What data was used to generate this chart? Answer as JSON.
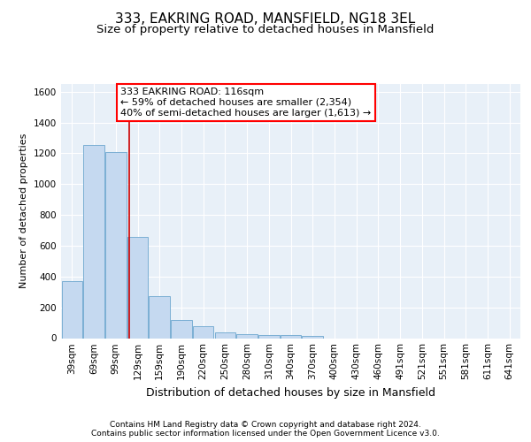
{
  "title": "333, EAKRING ROAD, MANSFIELD, NG18 3EL",
  "subtitle": "Size of property relative to detached houses in Mansfield",
  "xlabel": "Distribution of detached houses by size in Mansfield",
  "ylabel": "Number of detached properties",
  "footer_line1": "Contains HM Land Registry data © Crown copyright and database right 2024.",
  "footer_line2": "Contains public sector information licensed under the Open Government Licence v3.0.",
  "annotation_line1": "333 EAKRING ROAD: 116sqm",
  "annotation_line2": "← 59% of detached houses are smaller (2,354)",
  "annotation_line3": "40% of semi-detached houses are larger (1,613) →",
  "bar_color": "#c5d9f0",
  "bar_edge_color": "#7bafd4",
  "red_line_color": "#cc0000",
  "background_color": "#e8f0f8",
  "categories": [
    "39sqm",
    "69sqm",
    "99sqm",
    "129sqm",
    "159sqm",
    "190sqm",
    "220sqm",
    "250sqm",
    "280sqm",
    "310sqm",
    "340sqm",
    "370sqm",
    "400sqm",
    "430sqm",
    "460sqm",
    "491sqm",
    "521sqm",
    "551sqm",
    "581sqm",
    "611sqm",
    "641sqm"
  ],
  "values": [
    370,
    1255,
    1210,
    655,
    270,
    120,
    75,
    40,
    25,
    20,
    20,
    15,
    0,
    0,
    0,
    0,
    0,
    0,
    0,
    0,
    0
  ],
  "ylim": [
    0,
    1650
  ],
  "yticks": [
    0,
    200,
    400,
    600,
    800,
    1000,
    1200,
    1400,
    1600
  ],
  "red_line_x": 2.6,
  "title_fontsize": 11,
  "subtitle_fontsize": 9.5,
  "ylabel_fontsize": 8,
  "xlabel_fontsize": 9,
  "tick_fontsize": 7.5,
  "ann_fontsize": 8,
  "footer_fontsize": 6.5
}
